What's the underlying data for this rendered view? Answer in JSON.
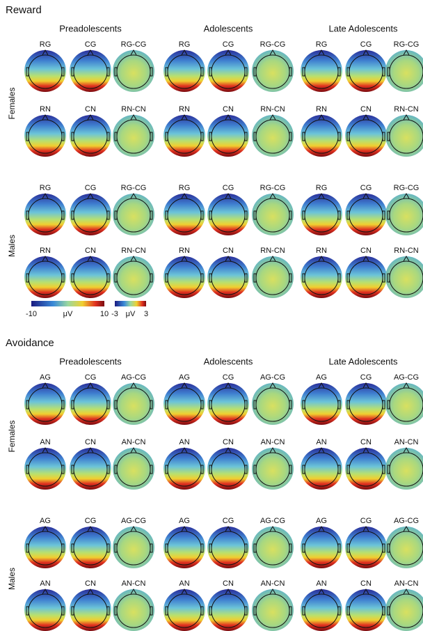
{
  "sections": [
    {
      "title": "Reward",
      "groups": [
        "Preadolescents",
        "Adolescents",
        "Late Adolescents"
      ],
      "sex_labels": [
        "Females",
        "Males"
      ],
      "row_labels": [
        [
          "RG",
          "CG",
          "RG-CG"
        ],
        [
          "RN",
          "CN",
          "RN-CN"
        ]
      ]
    },
    {
      "title": "Avoidance",
      "groups": [
        "Preadolescents",
        "Adolescents",
        "Late Adolescents"
      ],
      "sex_labels": [
        "Females",
        "Males"
      ],
      "row_labels": [
        [
          "AG",
          "CG",
          "AG-CG"
        ],
        [
          "AN",
          "CN",
          "AN-CN"
        ]
      ]
    }
  ],
  "colorbars": [
    {
      "min": -10,
      "unit": "μV",
      "max": 10
    },
    {
      "min": -3,
      "unit": "μV",
      "max": 3
    }
  ]
}
